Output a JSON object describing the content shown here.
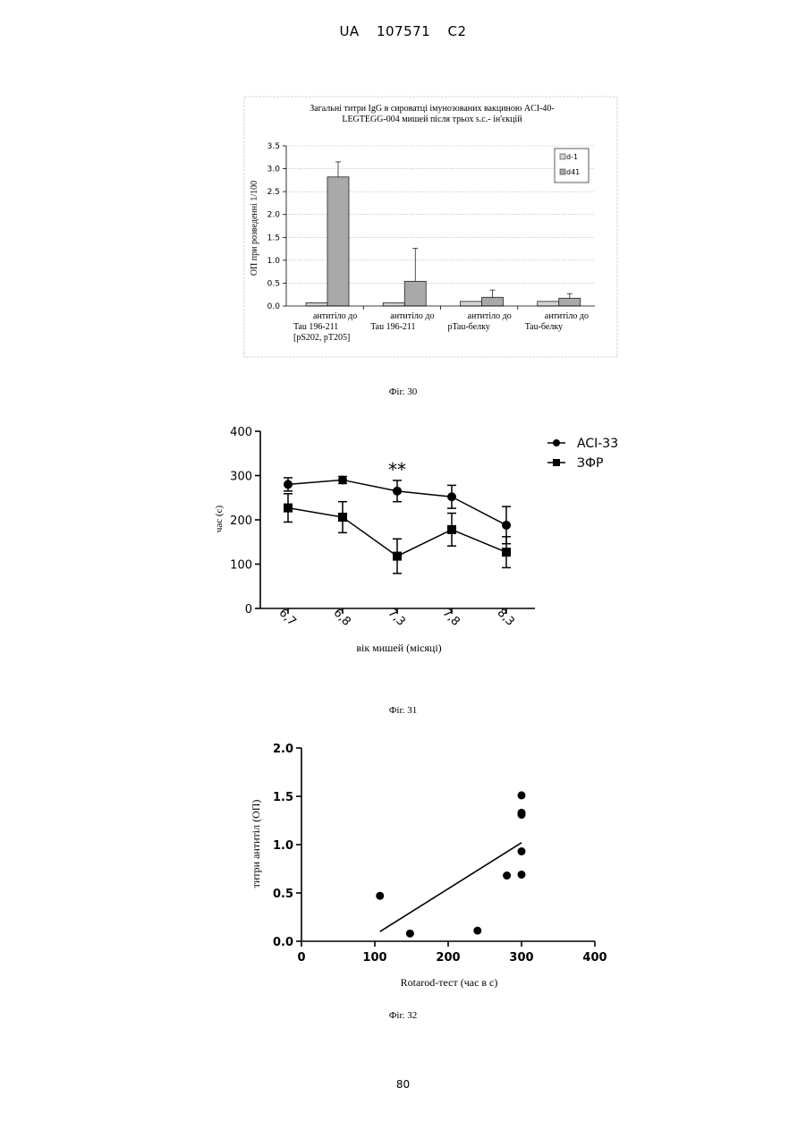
{
  "header": {
    "country": "UA",
    "number": "107571",
    "kind": "C2"
  },
  "page_number": "80",
  "figures": [
    {
      "caption": "Фіг. 30"
    },
    {
      "caption": "Фіг. 31"
    },
    {
      "caption": "Фіг. 32"
    }
  ],
  "chart_data": [
    {
      "type": "bar",
      "title": "Загальні титри IgG в сироватці імунозованих вакциною ACI-40-LEGTEGG-004 мишей після трьох s.c.- ін'єкцій",
      "title_lines": [
        "Загальні титри IgG в сироватці імунозованих вакциною ACI-40-",
        "LEGTEGG-004 мишей після трьох s.c.- ін'єкцій"
      ],
      "ylabel": "ОП при розведенні 1/100",
      "ylim": [
        0,
        3.5
      ],
      "yticks": [
        "0.0",
        "0.5",
        "1.0",
        "1.5",
        "2.0",
        "2.5",
        "3.0",
        "3.5"
      ],
      "grid": true,
      "legend_position": "top-right",
      "categories": [
        [
          "антитіло до",
          "Tau 196-211",
          "[pS202, pT205]"
        ],
        [
          "антитіло до",
          "Tau 196-211"
        ],
        [
          "антитіло до",
          "pTau-белку"
        ],
        [
          "антитіло до",
          "Tau-белку"
        ]
      ],
      "series": [
        {
          "name": "d-1",
          "values": [
            0.07,
            0.07,
            0.1,
            0.1
          ],
          "errors": [
            0,
            0,
            0,
            0
          ],
          "color": "#d4d4d4"
        },
        {
          "name": "d41",
          "values": [
            2.82,
            0.54,
            0.19,
            0.17
          ],
          "errors": [
            0.33,
            0.72,
            0.16,
            0.1
          ],
          "color": "#a9a9a9"
        }
      ]
    },
    {
      "type": "line",
      "ylabel": "час (с)",
      "xlabel": "вік мишей (місяці)",
      "ylim": [
        0,
        400
      ],
      "yticks": [
        "0",
        "100",
        "200",
        "300",
        "400"
      ],
      "categories": [
        "6,7",
        "6,8",
        "7,3",
        "7,8",
        "8,3"
      ],
      "legend_position": "top-right",
      "annotation": {
        "text": "**",
        "category_index": 2
      },
      "series": [
        {
          "name": "ACI-33",
          "marker": "circle",
          "values": [
            280,
            290,
            265,
            252,
            188
          ],
          "errors": [
            15,
            8,
            24,
            26,
            42
          ]
        },
        {
          "name": "ЗФР",
          "marker": "square",
          "values": [
            227,
            206,
            118,
            178,
            127
          ],
          "errors": [
            32,
            35,
            39,
            37,
            35
          ]
        }
      ]
    },
    {
      "type": "scatter",
      "ylabel": "титри антитіл (ОП)",
      "xlabel": "Rotarod-тест (час в с)",
      "xlim": [
        0,
        400
      ],
      "ylim": [
        0,
        2.0
      ],
      "xticks": [
        "0",
        "100",
        "200",
        "300",
        "400"
      ],
      "yticks": [
        "0.0",
        "0.5",
        "1.0",
        "1.5",
        "2.0"
      ],
      "points": [
        {
          "x": 107,
          "y": 0.47
        },
        {
          "x": 148,
          "y": 0.08
        },
        {
          "x": 240,
          "y": 0.11
        },
        {
          "x": 280,
          "y": 0.68
        },
        {
          "x": 300,
          "y": 1.51
        },
        {
          "x": 300,
          "y": 1.33
        },
        {
          "x": 300,
          "y": 1.31
        },
        {
          "x": 300,
          "y": 0.93
        },
        {
          "x": 300,
          "y": 0.69
        }
      ],
      "fit_line": [
        {
          "x": 107,
          "y": 0.1
        },
        {
          "x": 300,
          "y": 1.02
        }
      ]
    }
  ]
}
